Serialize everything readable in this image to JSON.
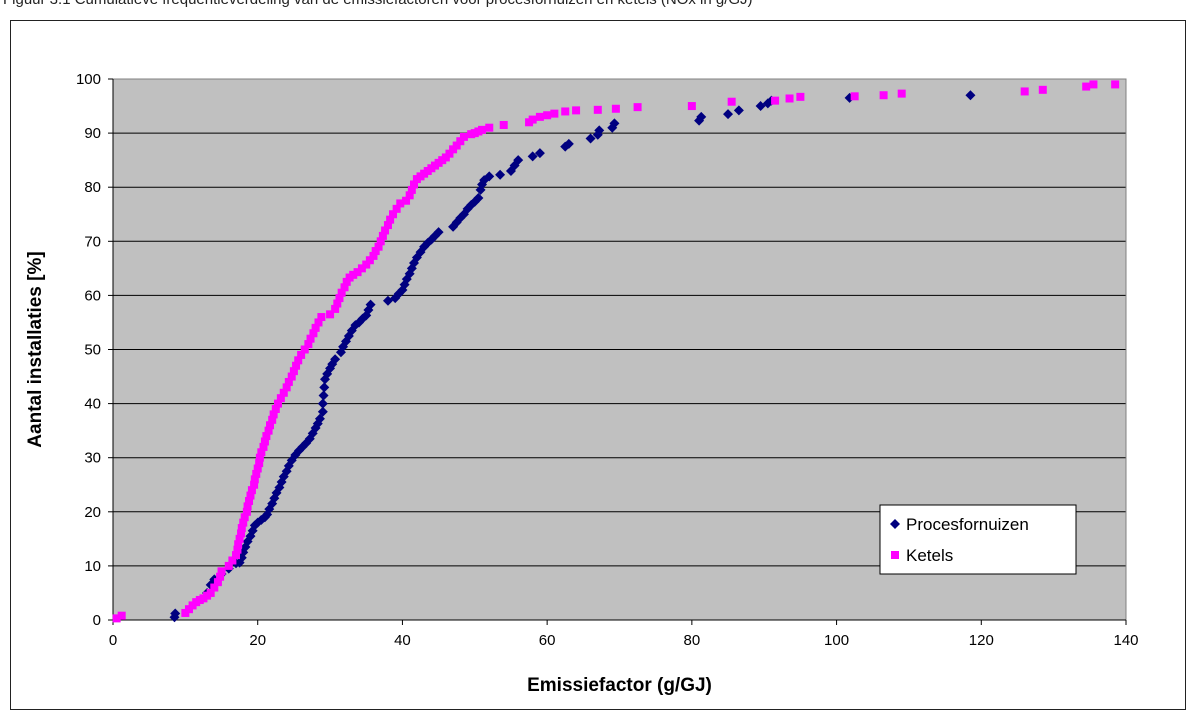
{
  "caption": "Figuur 3.1 Cumulatieve frequentieverdeling van de emissiefactoren voor procesfornuizen en ketels (NOx in g/GJ)",
  "chart_data": {
    "type": "scatter",
    "title": "",
    "xlabel": "Emissiefactor (g/GJ)",
    "ylabel": "Aantal installaties [%]",
    "xlim": [
      0,
      140
    ],
    "ylim": [
      0,
      100
    ],
    "xticks": [
      0,
      20,
      40,
      60,
      80,
      100,
      120,
      140
    ],
    "yticks": [
      0,
      10,
      20,
      30,
      40,
      50,
      60,
      70,
      80,
      90,
      100
    ],
    "xtick_labels": [
      "0",
      "20",
      "40",
      "60",
      "80",
      "100",
      "120",
      "140"
    ],
    "ytick_labels": [
      "0",
      "10",
      "20",
      "30",
      "40",
      "50",
      "60",
      "70",
      "80",
      "90",
      "100"
    ],
    "grid": "horizontal",
    "legend_position": "bottom-right",
    "plot_background": "#c0c0c0",
    "series": [
      {
        "name": "Procesfornuizen",
        "marker": "diamond",
        "color": "#000080",
        "points": [
          [
            8.5,
            0.5
          ],
          [
            8.6,
            1.2
          ],
          [
            13,
            5
          ],
          [
            13.5,
            6.5
          ],
          [
            14,
            7.5
          ],
          [
            15,
            8.5
          ],
          [
            16,
            9.5
          ],
          [
            17,
            10.5
          ],
          [
            17.5,
            10.6
          ],
          [
            17.8,
            11.5
          ],
          [
            18,
            12.5
          ],
          [
            18.3,
            13.5
          ],
          [
            18.6,
            14.5
          ],
          [
            19,
            15.5
          ],
          [
            19.3,
            16.5
          ],
          [
            19.6,
            17.5
          ],
          [
            20,
            18
          ],
          [
            20.5,
            18.5
          ],
          [
            21,
            19
          ],
          [
            21.3,
            19.5
          ],
          [
            21.6,
            20.5
          ],
          [
            22,
            21.5
          ],
          [
            22.3,
            22.5
          ],
          [
            22.6,
            23.5
          ],
          [
            23,
            24.5
          ],
          [
            23.3,
            25.5
          ],
          [
            23.6,
            26.5
          ],
          [
            24,
            27.5
          ],
          [
            24.3,
            28.5
          ],
          [
            24.7,
            29.5
          ],
          [
            25.2,
            30.5
          ],
          [
            25.7,
            31.3
          ],
          [
            26.2,
            32
          ],
          [
            26.7,
            32.7
          ],
          [
            27.2,
            33.5
          ],
          [
            27.6,
            34.5
          ],
          [
            28,
            35.5
          ],
          [
            28.3,
            36.3
          ],
          [
            28.6,
            37.2
          ],
          [
            29,
            38.5
          ],
          [
            29,
            40
          ],
          [
            29.1,
            41.5
          ],
          [
            29.2,
            43
          ],
          [
            29.3,
            44.5
          ],
          [
            29.6,
            45.5
          ],
          [
            30,
            46.5
          ],
          [
            30.3,
            47.3
          ],
          [
            30.7,
            48.2
          ],
          [
            31.5,
            49.5
          ],
          [
            31.8,
            50.5
          ],
          [
            32.2,
            51.5
          ],
          [
            32.6,
            52.5
          ],
          [
            33,
            53.5
          ],
          [
            33.5,
            54.5
          ],
          [
            34,
            55
          ],
          [
            34.5,
            55.7
          ],
          [
            35,
            56.3
          ],
          [
            35.3,
            57.3
          ],
          [
            35.6,
            58.3
          ],
          [
            38,
            59
          ],
          [
            39,
            59.5
          ],
          [
            39.5,
            60.3
          ],
          [
            40,
            61
          ],
          [
            40.3,
            62
          ],
          [
            40.6,
            63
          ],
          [
            41,
            64
          ],
          [
            41.3,
            65
          ],
          [
            41.6,
            66
          ],
          [
            42,
            67
          ],
          [
            42.5,
            68
          ],
          [
            43,
            69
          ],
          [
            43.5,
            69.7
          ],
          [
            44,
            70.3
          ],
          [
            44.5,
            71
          ],
          [
            45,
            71.7
          ],
          [
            47,
            72.7
          ],
          [
            47.5,
            73.5
          ],
          [
            48,
            74.3
          ],
          [
            48.5,
            75
          ],
          [
            49,
            76
          ],
          [
            49.5,
            76.7
          ],
          [
            50,
            77.3
          ],
          [
            50.5,
            78
          ],
          [
            50.8,
            79.5
          ],
          [
            51,
            80.5
          ],
          [
            51.3,
            81.3
          ],
          [
            52,
            82
          ],
          [
            53.5,
            82.3
          ],
          [
            55,
            83
          ],
          [
            55.5,
            84
          ],
          [
            56,
            85
          ],
          [
            58,
            85.7
          ],
          [
            59,
            86.3
          ],
          [
            62.5,
            87.5
          ],
          [
            63,
            88
          ],
          [
            66,
            89
          ],
          [
            67,
            89.7
          ],
          [
            67.2,
            90.5
          ],
          [
            69,
            91
          ],
          [
            69.3,
            91.8
          ],
          [
            81,
            92.3
          ],
          [
            81.3,
            93
          ],
          [
            85,
            93.5
          ],
          [
            86.5,
            94.2
          ],
          [
            89.5,
            95
          ],
          [
            90.5,
            95.5
          ],
          [
            91,
            96
          ],
          [
            101.8,
            96.5
          ],
          [
            118.5,
            97
          ]
        ]
      },
      {
        "name": "Ketels",
        "marker": "square",
        "color": "#ff00ff",
        "points": [
          [
            0.5,
            0.3
          ],
          [
            1.2,
            0.8
          ],
          [
            10,
            1.3
          ],
          [
            10.5,
            2
          ],
          [
            11,
            2.7
          ],
          [
            11.5,
            3.3
          ],
          [
            12,
            3.7
          ],
          [
            12.5,
            4
          ],
          [
            13,
            4.5
          ],
          [
            13.5,
            5
          ],
          [
            14,
            6
          ],
          [
            14.5,
            7
          ],
          [
            14.8,
            8
          ],
          [
            15,
            9
          ],
          [
            16,
            10
          ],
          [
            16.5,
            11
          ],
          [
            17,
            12
          ],
          [
            17.2,
            13
          ],
          [
            17.3,
            14
          ],
          [
            17.5,
            15
          ],
          [
            17.7,
            16
          ],
          [
            17.8,
            17
          ],
          [
            18,
            18
          ],
          [
            18.2,
            19
          ],
          [
            18.5,
            20
          ],
          [
            18.6,
            21
          ],
          [
            18.8,
            22
          ],
          [
            19,
            23
          ],
          [
            19.2,
            24
          ],
          [
            19.5,
            25
          ],
          [
            19.6,
            26
          ],
          [
            19.8,
            27
          ],
          [
            20,
            28
          ],
          [
            20.2,
            29
          ],
          [
            20.3,
            30
          ],
          [
            20.5,
            31
          ],
          [
            20.8,
            32
          ],
          [
            21,
            33
          ],
          [
            21.2,
            34
          ],
          [
            21.5,
            35
          ],
          [
            21.7,
            36
          ],
          [
            22,
            37
          ],
          [
            22.2,
            38
          ],
          [
            22.5,
            39
          ],
          [
            22.8,
            40
          ],
          [
            23.2,
            41
          ],
          [
            23.6,
            42
          ],
          [
            24,
            43
          ],
          [
            24.3,
            44
          ],
          [
            24.7,
            45
          ],
          [
            25,
            46
          ],
          [
            25.3,
            47
          ],
          [
            25.6,
            48
          ],
          [
            26,
            49
          ],
          [
            26.5,
            50
          ],
          [
            27,
            51
          ],
          [
            27.3,
            52
          ],
          [
            27.7,
            53
          ],
          [
            28,
            54
          ],
          [
            28.4,
            55
          ],
          [
            28.8,
            56
          ],
          [
            30,
            56.5
          ],
          [
            30.7,
            57.5
          ],
          [
            31,
            58.5
          ],
          [
            31.3,
            59.5
          ],
          [
            31.6,
            60.5
          ],
          [
            32,
            61.5
          ],
          [
            32.3,
            62.5
          ],
          [
            32.7,
            63.3
          ],
          [
            33.2,
            63.8
          ],
          [
            33.8,
            64.3
          ],
          [
            34.4,
            65
          ],
          [
            35,
            65.7
          ],
          [
            35.5,
            66.5
          ],
          [
            36,
            67.3
          ],
          [
            36.3,
            68.2
          ],
          [
            36.7,
            69
          ],
          [
            37,
            70
          ],
          [
            37.3,
            71
          ],
          [
            37.6,
            72
          ],
          [
            38,
            73
          ],
          [
            38.3,
            74
          ],
          [
            38.7,
            75
          ],
          [
            39.2,
            76
          ],
          [
            39.7,
            77
          ],
          [
            40.5,
            77.5
          ],
          [
            41,
            78.5
          ],
          [
            41.3,
            79.5
          ],
          [
            41.6,
            80.5
          ],
          [
            42,
            81.5
          ],
          [
            42.5,
            82
          ],
          [
            43,
            82.5
          ],
          [
            43.5,
            83
          ],
          [
            44,
            83.5
          ],
          [
            44.5,
            84
          ],
          [
            45,
            84.5
          ],
          [
            45.5,
            85
          ],
          [
            46,
            85.5
          ],
          [
            46.5,
            86.2
          ],
          [
            47,
            87
          ],
          [
            47.5,
            87.7
          ],
          [
            48,
            88.5
          ],
          [
            48.5,
            89.3
          ],
          [
            49.5,
            89.8
          ],
          [
            50,
            90
          ],
          [
            50.5,
            90.3
          ],
          [
            51,
            90.6
          ],
          [
            52,
            91
          ],
          [
            54,
            91.5
          ],
          [
            57.5,
            92
          ],
          [
            58,
            92.5
          ],
          [
            59,
            93
          ],
          [
            60,
            93.3
          ],
          [
            61,
            93.6
          ],
          [
            62.5,
            94
          ],
          [
            64,
            94.2
          ],
          [
            67,
            94.3
          ],
          [
            69.5,
            94.5
          ],
          [
            72.5,
            94.8
          ],
          [
            80,
            95
          ],
          [
            85.5,
            95.8
          ],
          [
            91.5,
            96
          ],
          [
            93.5,
            96.4
          ],
          [
            95,
            96.7
          ],
          [
            102.5,
            96.8
          ],
          [
            106.5,
            97
          ],
          [
            109,
            97.3
          ],
          [
            126,
            97.7
          ],
          [
            128.5,
            98
          ],
          [
            134.5,
            98.6
          ],
          [
            135.5,
            99
          ],
          [
            138.5,
            99
          ]
        ]
      }
    ]
  }
}
